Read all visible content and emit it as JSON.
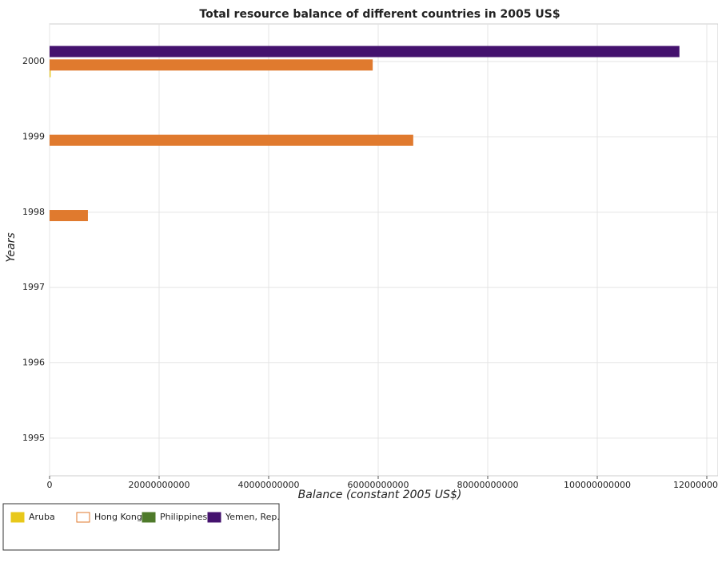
{
  "chart_data": {
    "type": "barh",
    "title": "Total resource balance of different countries in 2005 US$",
    "xlabel": "Balance (constant 2005 US$)",
    "ylabel": "Years",
    "categories": [
      "1995",
      "1996",
      "1997",
      "1998",
      "1999",
      "2000"
    ],
    "series": [
      {
        "name": "Aruba",
        "color": "#e8c81a",
        "values": [
          0,
          0,
          0,
          0,
          0,
          200000000
        ]
      },
      {
        "name": "Hong Kong",
        "color": "#e07a2e",
        "values": [
          0,
          0,
          0,
          7000000000,
          66400000000,
          59000000000
        ]
      },
      {
        "name": "Philippines",
        "color": "#4e7a2a",
        "values": [
          0,
          0,
          0,
          0,
          0,
          0
        ]
      },
      {
        "name": "Yemen, Rep.",
        "color": "#44126e",
        "values": [
          0,
          0,
          0,
          0,
          0,
          115000000000
        ]
      }
    ],
    "xlim": [
      0,
      120000000000
    ],
    "xticks": [
      0,
      20000000000,
      40000000000,
      60000000000,
      80000000000,
      100000000000,
      120000000000
    ],
    "grid": true,
    "legend": "lower left"
  }
}
